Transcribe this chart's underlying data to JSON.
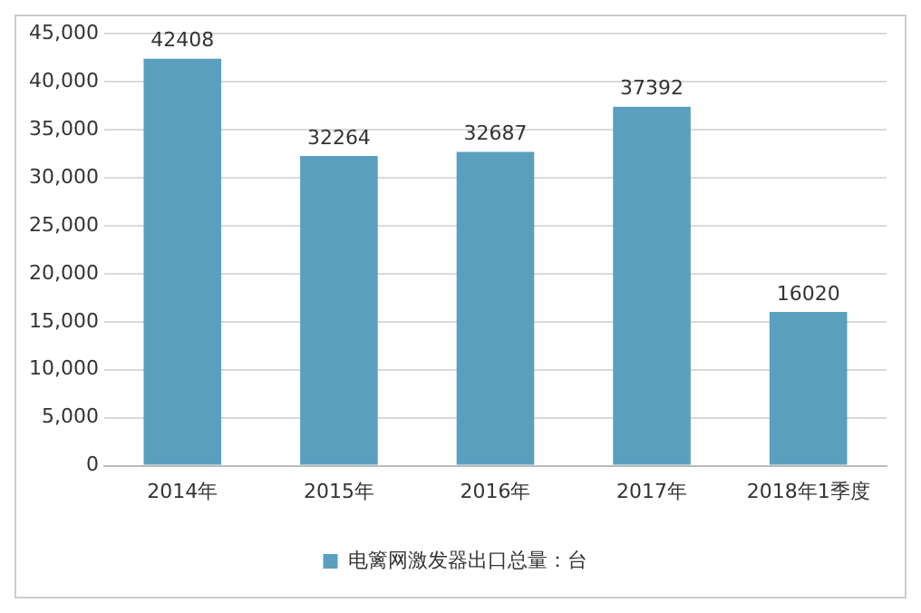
{
  "chart_data": {
    "type": "bar",
    "categories": [
      "2014年",
      "2015年",
      "2016年",
      "2017年",
      "2018年1季度"
    ],
    "series": [
      {
        "name": "电篱网激发器出口总量：台",
        "color": "#5b9fbf",
        "values": [
          42408,
          32264,
          32687,
          37392,
          16020
        ]
      }
    ],
    "ylim": [
      0,
      45000
    ],
    "yticks": [
      {
        "value": 0,
        "label": "0"
      },
      {
        "value": 5000,
        "label": "5,000"
      },
      {
        "value": 10000,
        "label": "10,000"
      },
      {
        "value": 15000,
        "label": "15,000"
      },
      {
        "value": 20000,
        "label": "20,000"
      },
      {
        "value": 25000,
        "label": "25,000"
      },
      {
        "value": 30000,
        "label": "30,000"
      },
      {
        "value": 35000,
        "label": "35,000"
      },
      {
        "value": 40000,
        "label": "40,000"
      },
      {
        "value": 45000,
        "label": "45,000"
      }
    ],
    "grid": "y",
    "legend": "bottom",
    "data_labels": true
  }
}
